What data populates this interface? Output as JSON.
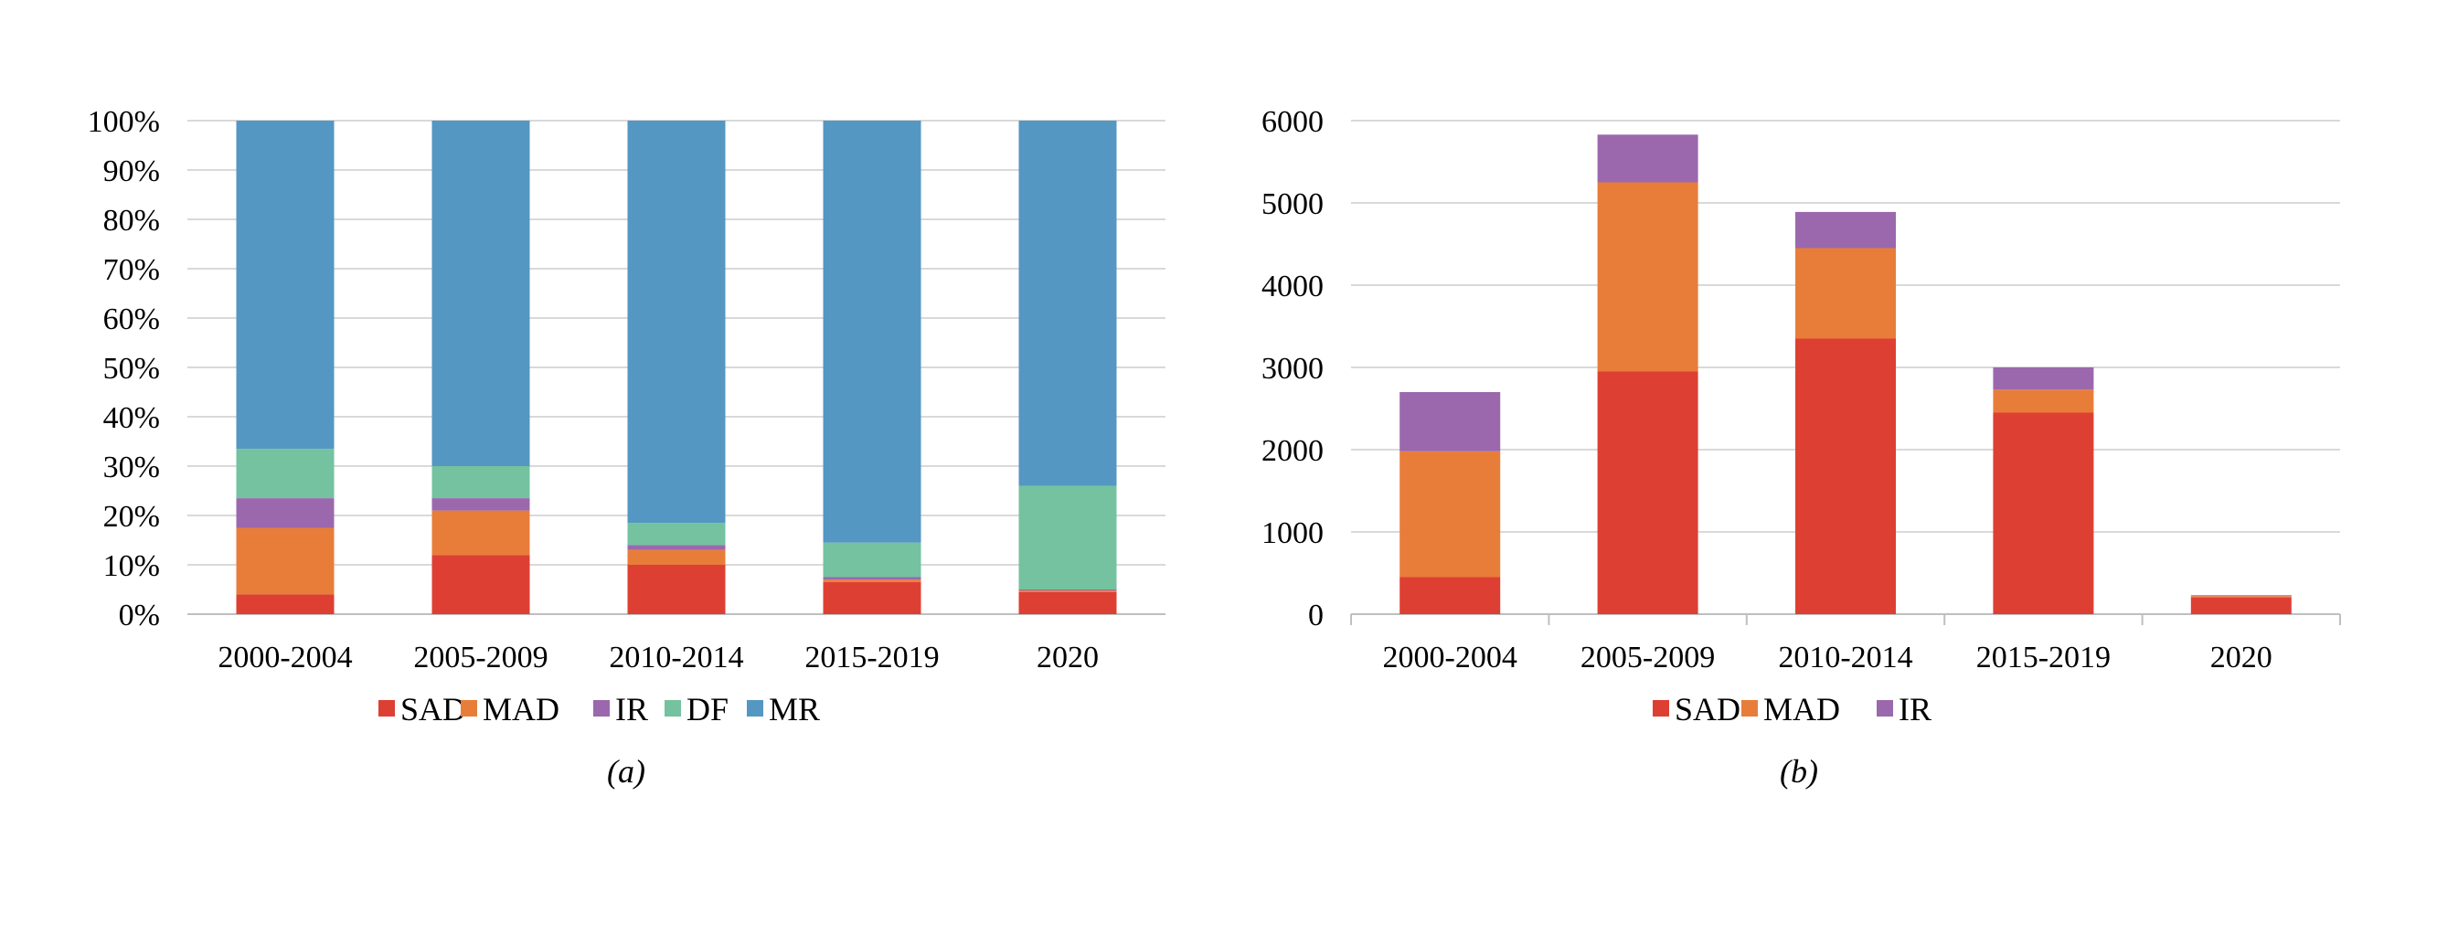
{
  "colors": {
    "SAD": "#de3f33",
    "MAD": "#e87d3a",
    "IR": "#9b68ad",
    "DF": "#74c2a0",
    "MR": "#5497c2"
  },
  "chart_data": [
    {
      "type": "bar",
      "stacked": true,
      "caption": "(a)",
      "categories": [
        "2000-2004",
        "2005-2009",
        "2010-2014",
        "2015-2019",
        "2020"
      ],
      "series": [
        {
          "name": "SAD",
          "values": [
            4,
            12,
            10,
            6.5,
            4.5
          ]
        },
        {
          "name": "MAD",
          "values": [
            13.5,
            9,
            3,
            0.5,
            0.3
          ]
        },
        {
          "name": "IR",
          "values": [
            6,
            2.5,
            1,
            0.5,
            0.2
          ]
        },
        {
          "name": "DF",
          "values": [
            10,
            6.5,
            4.5,
            7,
            21
          ]
        },
        {
          "name": "MR",
          "values": [
            66.5,
            70,
            81.5,
            85.5,
            74
          ]
        }
      ],
      "ylim": [
        0,
        100
      ],
      "yticks": [
        "0%",
        "10%",
        "20%",
        "30%",
        "40%",
        "50%",
        "60%",
        "70%",
        "80%",
        "90%",
        "100%"
      ],
      "grid": true,
      "legend_position": "bottom"
    },
    {
      "type": "bar",
      "stacked": true,
      "caption": "(b)",
      "categories": [
        "2000-2004",
        "2005-2009",
        "2010-2014",
        "2015-2019",
        "2020"
      ],
      "series": [
        {
          "name": "SAD",
          "values": [
            450,
            2950,
            3350,
            2450,
            200
          ]
        },
        {
          "name": "MAD",
          "values": [
            1530,
            2300,
            1100,
            280,
            20
          ]
        },
        {
          "name": "IR",
          "values": [
            720,
            580,
            440,
            270,
            10
          ]
        }
      ],
      "ylim": [
        0,
        6000
      ],
      "yticks": [
        "0",
        "1000",
        "2000",
        "3000",
        "4000",
        "5000",
        "6000"
      ],
      "grid": true,
      "legend_position": "bottom"
    }
  ]
}
